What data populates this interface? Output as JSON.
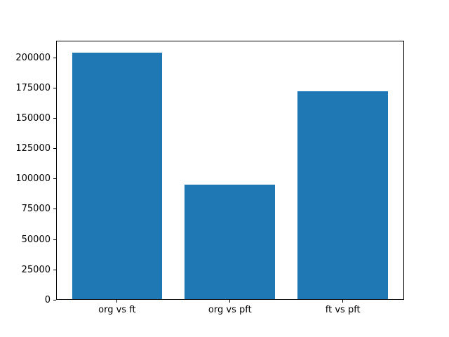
{
  "figure": {
    "background": "#ffffff"
  },
  "chart_data": {
    "type": "bar",
    "categories": [
      "org vs ft",
      "org vs pft",
      "ft vs pft"
    ],
    "values": [
      204200,
      95300,
      172300
    ],
    "yticks": [
      0,
      25000,
      50000,
      75000,
      100000,
      125000,
      150000,
      175000,
      200000
    ],
    "ylim": [
      0,
      214400
    ],
    "bar_color": "#1f77b4",
    "axis_color": "#000000",
    "grid": false,
    "legend_position": "none",
    "bar_width_fraction": 0.8
  }
}
